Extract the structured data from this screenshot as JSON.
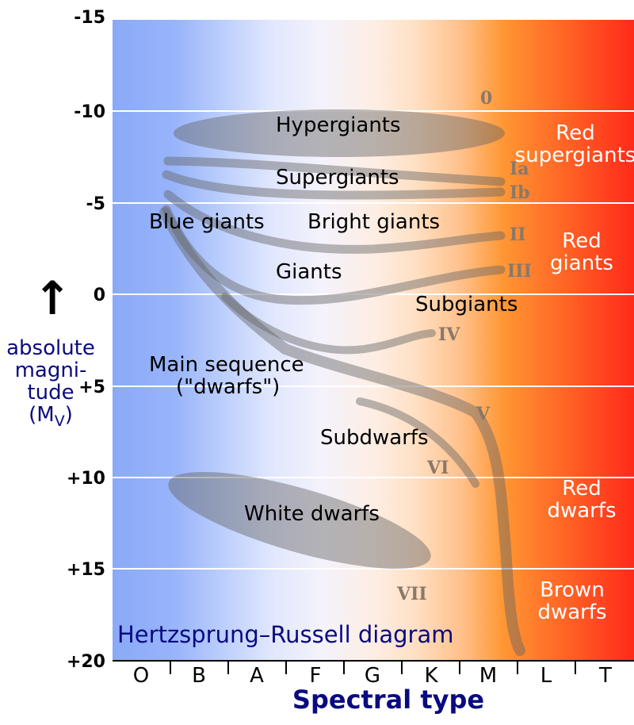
{
  "title": "Hertzsprung–Russell diagram",
  "x_axis": {
    "title": "Spectral type",
    "ticks": [
      "O",
      "B",
      "A",
      "F",
      "G",
      "K",
      "M",
      "L",
      "T"
    ]
  },
  "y_axis": {
    "label_line1": "absolute",
    "label_line2": "magni-",
    "label_line3": "tude",
    "label_line4": "(M",
    "label_sub": "V",
    "label_close": ")",
    "arrow": "↑",
    "ticks": [
      "-15",
      "-10",
      "-5",
      "0",
      "+5",
      "+10",
      "+15",
      "+20"
    ]
  },
  "regions": {
    "hypergiants": "Hypergiants",
    "supergiants": "Supergiants",
    "blue_giants": "Blue giants",
    "bright_giants": "Bright giants",
    "giants": "Giants",
    "subgiants": "Subgiants",
    "main_sequence_1": "Main sequence",
    "main_sequence_2": "(\"dwarfs\")",
    "subdwarfs": "Subdwarfs",
    "white_dwarfs": "White dwarfs",
    "red_supergiants_1": "Red",
    "red_supergiants_2": "supergiants",
    "red_giants_1": "Red",
    "red_giants_2": "giants",
    "red_dwarfs_1": "Red",
    "red_dwarfs_2": "dwarfs",
    "brown_dwarfs_1": "Brown",
    "brown_dwarfs_2": "dwarfs"
  },
  "luminosity_classes": {
    "c0": "0",
    "ia": "Ia",
    "ib": "Ib",
    "ii": "II",
    "iii": "III",
    "iv": "IV",
    "v": "V",
    "vi": "VI",
    "vii": "VII"
  },
  "colors": {
    "blue": "#8aaaf8",
    "white": "#f4f2fc",
    "orange": "#ff9030",
    "red": "#ff2a1a",
    "label_navy": "#0a0a80"
  }
}
